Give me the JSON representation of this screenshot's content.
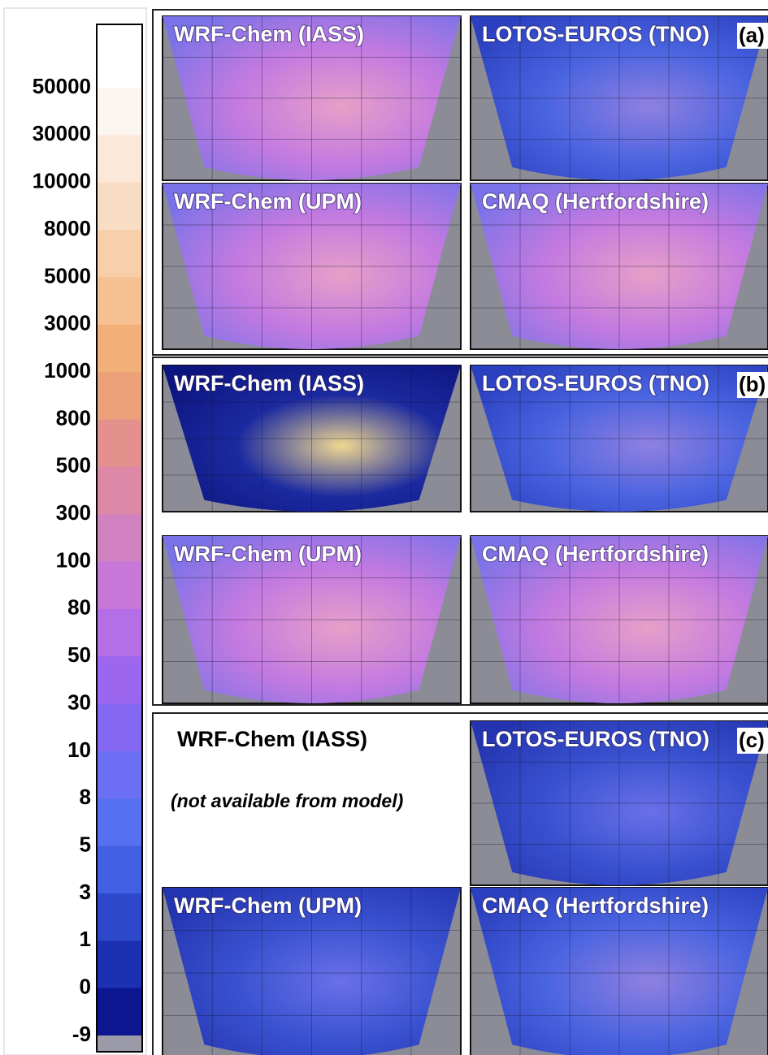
{
  "colorbar": {
    "labels": [
      "50000",
      "30000",
      "10000",
      "8000",
      "5000",
      "3000",
      "1000",
      "800",
      "500",
      "300",
      "100",
      "80",
      "50",
      "30",
      "10",
      "8",
      "5",
      "3",
      "1",
      "0",
      "-9"
    ],
    "colors": [
      "#ffffff",
      "#fdf5ef",
      "#fbe8d9",
      "#f9dcc4",
      "#f7cfab",
      "#f5c092",
      "#f2b078",
      "#eba07a",
      "#e4908c",
      "#dc88a6",
      "#d282c0",
      "#c878d8",
      "#b46ee6",
      "#9c66ee",
      "#8468f2",
      "#6c6ef4",
      "#5670f2",
      "#4260e4",
      "#2e48cc",
      "#1c30b2",
      "#0c1690",
      "#9a9aa8"
    ]
  },
  "groups": [
    {
      "label": "(a)",
      "maps": [
        {
          "title": "WRF-Chem (IASS)"
        },
        {
          "title": "LOTOS-EUROS (TNO)"
        },
        {
          "title": "WRF-Chem (UPM)"
        },
        {
          "title": "CMAQ (Hertfordshire)"
        }
      ]
    },
    {
      "label": "(b)",
      "maps": [
        {
          "title": "WRF-Chem (IASS)"
        },
        {
          "title": "LOTOS-EUROS (TNO)"
        },
        {
          "title": "WRF-Chem (UPM)"
        },
        {
          "title": "CMAQ (Hertfordshire)"
        }
      ]
    },
    {
      "label": "(c)",
      "maps": [
        {
          "title": "WRF-Chem (IASS)",
          "note": "(not available from model)"
        },
        {
          "title": "LOTOS-EUROS (TNO)"
        },
        {
          "title": "WRF-Chem (UPM)"
        },
        {
          "title": "CMAQ (Hertfordshire)"
        }
      ]
    }
  ]
}
